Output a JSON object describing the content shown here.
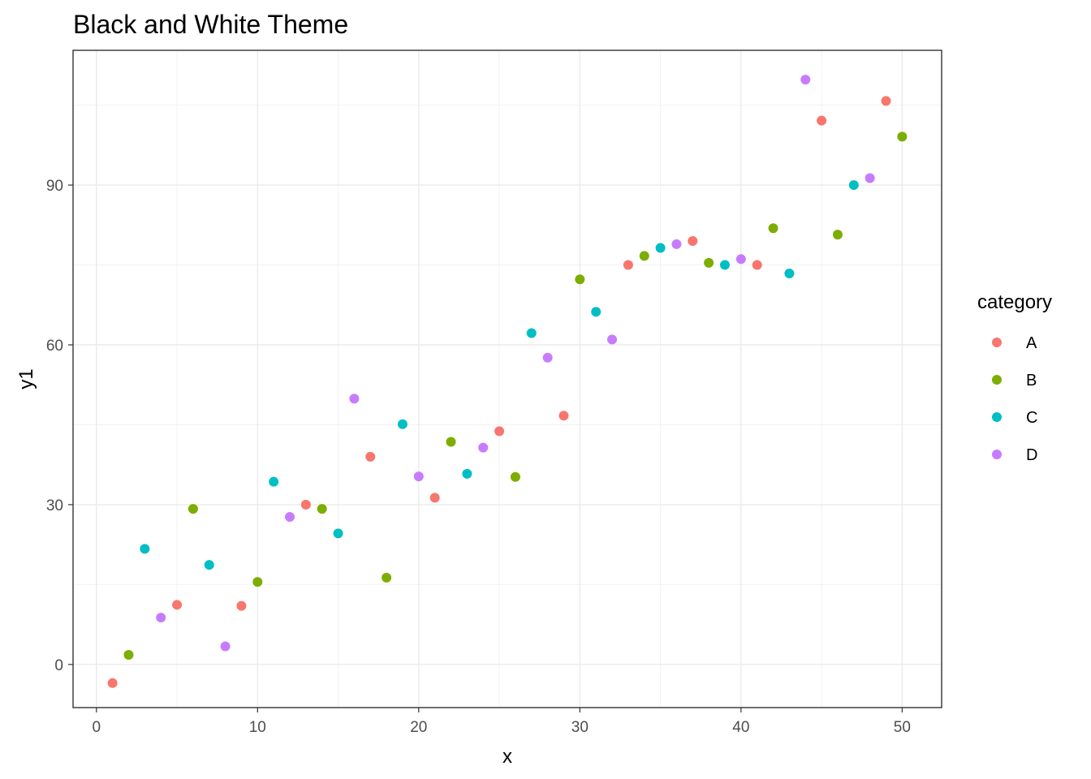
{
  "chart_data": {
    "type": "scatter",
    "title": "Black and White Theme",
    "xlabel": "x",
    "ylabel": "y1",
    "xlim": [
      -1.45,
      52.45
    ],
    "ylim": [
      -8.1,
      115.3
    ],
    "x_ticks": [
      0,
      10,
      20,
      30,
      40,
      50
    ],
    "y_ticks": [
      0,
      30,
      60,
      90
    ],
    "grid": true,
    "legend": {
      "title": "category",
      "placement": "right",
      "entries": [
        "A",
        "B",
        "C",
        "D"
      ]
    },
    "series": [
      {
        "name": "A",
        "color": "#F8766D",
        "points": [
          [
            1,
            -3.5
          ],
          [
            5,
            11.2
          ],
          [
            9,
            11.0
          ],
          [
            13,
            30.0
          ],
          [
            17,
            39.0
          ],
          [
            21,
            31.3
          ],
          [
            25,
            43.8
          ],
          [
            29,
            46.7
          ],
          [
            33,
            75.0
          ],
          [
            37,
            79.5
          ],
          [
            41,
            75.0
          ],
          [
            45,
            102.1
          ],
          [
            49,
            105.8
          ]
        ]
      },
      {
        "name": "B",
        "color": "#7CAE00",
        "points": [
          [
            2,
            1.8
          ],
          [
            6,
            29.2
          ],
          [
            10,
            15.5
          ],
          [
            14,
            29.2
          ],
          [
            18,
            16.3
          ],
          [
            22,
            41.8
          ],
          [
            26,
            35.2
          ],
          [
            30,
            72.3
          ],
          [
            34,
            76.7
          ],
          [
            38,
            75.4
          ],
          [
            42,
            81.9
          ],
          [
            46,
            80.7
          ],
          [
            50,
            99.1
          ]
        ]
      },
      {
        "name": "C",
        "color": "#00BFC4",
        "points": [
          [
            3,
            21.7
          ],
          [
            7,
            18.7
          ],
          [
            11,
            34.3
          ],
          [
            15,
            24.6
          ],
          [
            19,
            45.1
          ],
          [
            23,
            35.8
          ],
          [
            27,
            62.2
          ],
          [
            31,
            66.2
          ],
          [
            35,
            78.2
          ],
          [
            39,
            75.0
          ],
          [
            43,
            73.4
          ],
          [
            47,
            90.0
          ]
        ]
      },
      {
        "name": "D",
        "color": "#C77CFF",
        "points": [
          [
            4,
            8.8
          ],
          [
            8,
            3.4
          ],
          [
            12,
            27.7
          ],
          [
            16,
            49.9
          ],
          [
            20,
            35.3
          ],
          [
            24,
            40.7
          ],
          [
            28,
            57.6
          ],
          [
            32,
            61.0
          ],
          [
            36,
            78.9
          ],
          [
            40,
            76.1
          ],
          [
            44,
            109.8
          ],
          [
            48,
            91.3
          ]
        ]
      }
    ]
  }
}
